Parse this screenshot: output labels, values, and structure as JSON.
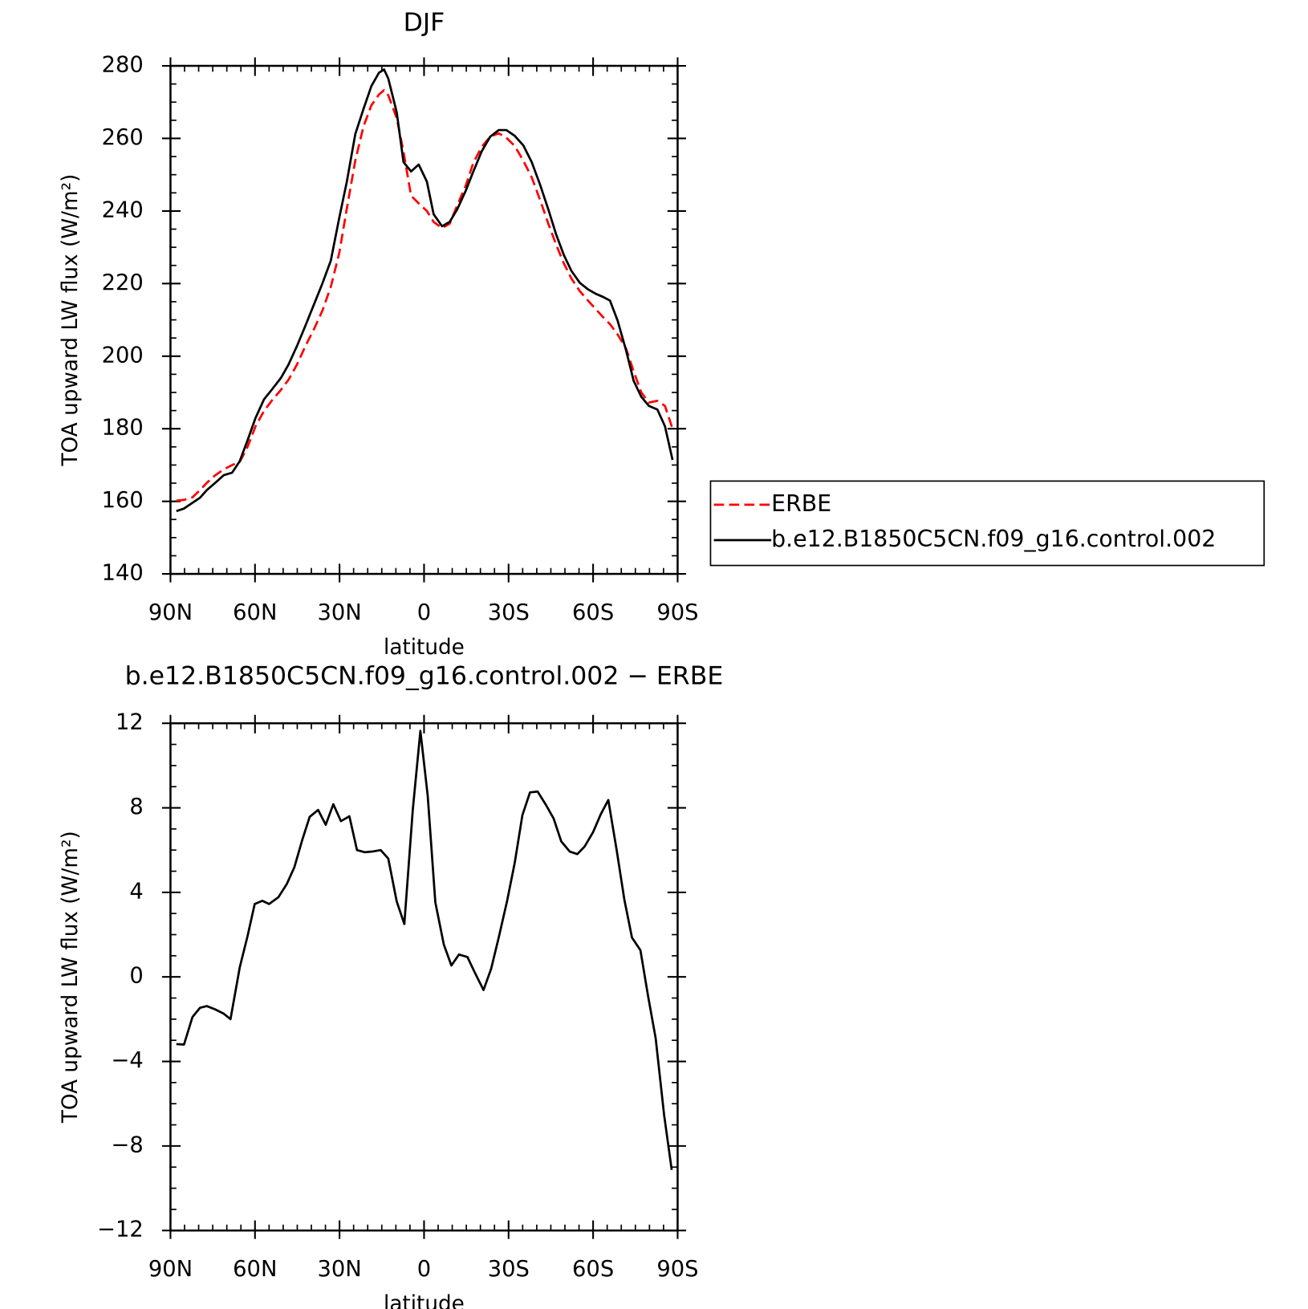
{
  "chart_data": [
    {
      "type": "line",
      "title": "DJF",
      "xlabel": "latitude",
      "ylabel": "TOA upward LW flux (W/m²)",
      "xlim": [
        90,
        -90
      ],
      "xticks": [
        {
          "value": 90,
          "label": "90N"
        },
        {
          "value": 60,
          "label": "60N"
        },
        {
          "value": 30,
          "label": "30N"
        },
        0,
        {
          "value": -30,
          "label": "30S"
        },
        {
          "value": -60,
          "label": "60S"
        },
        {
          "value": -90,
          "label": "90S"
        }
      ],
      "ylim": [
        140,
        280
      ],
      "yticks": [
        140,
        160,
        180,
        200,
        220,
        240,
        260,
        280
      ],
      "legend": "right",
      "x": [
        87.9,
        85.2,
        82.2,
        79.5,
        77.1,
        74.1,
        71.1,
        68.1,
        65.4,
        62.7,
        59.8,
        56.8,
        54.1,
        50.8,
        48.1,
        45.1,
        42.1,
        39.1,
        36.1,
        33.1,
        30.1,
        27.4,
        24.4,
        21.5,
        18.7,
        16.0,
        14.2,
        12.7,
        9.7,
        7.3,
        4.6,
        1.9,
        -1.0,
        -3.4,
        -6.4,
        -9.1,
        -11.8,
        -14.8,
        -17.5,
        -20.5,
        -23.5,
        -26.5,
        -29.2,
        -32.2,
        -35.2,
        -38.2,
        -41.2,
        -44.2,
        -46.9,
        -49.6,
        -52.3,
        -55.3,
        -58.2,
        -60.9,
        -63.6,
        -66.0,
        -68.7,
        -71.7,
        -74.4,
        -77.1,
        -79.8,
        -82.8,
        -85.5,
        -88.2
      ],
      "series": [
        {
          "name": "ERBE",
          "color": "#ff0000",
          "linestyle": "dashed",
          "values": [
            160.2,
            160.4,
            161.1,
            163.1,
            165.1,
            167.2,
            168.8,
            170.0,
            170.9,
            174.9,
            180.7,
            184.9,
            187.7,
            190.7,
            193.5,
            197.7,
            202.8,
            207.4,
            212.5,
            219.1,
            228.4,
            240.7,
            253.9,
            263.3,
            269.1,
            272.1,
            273.3,
            271.9,
            265.6,
            256.3,
            244.2,
            242.1,
            240.0,
            237.0,
            235.3,
            236.5,
            241.6,
            247.0,
            253.3,
            257.7,
            260.5,
            261.4,
            260.2,
            257.9,
            253.9,
            249.3,
            243.0,
            236.3,
            230.7,
            225.6,
            221.4,
            217.9,
            215.3,
            213.0,
            210.7,
            208.8,
            206.0,
            202.1,
            195.8,
            190.0,
            187.2,
            187.7,
            186.3,
            180.0
          ]
        },
        {
          "name": "b.e12.B1850C5CN.f09_g16.control.002",
          "color": "#000000",
          "linestyle": "solid",
          "values": [
            157.3,
            158.0,
            159.6,
            161.0,
            163.1,
            165.1,
            167.2,
            167.9,
            171.1,
            176.7,
            183.0,
            188.1,
            190.7,
            194.0,
            197.7,
            202.8,
            208.4,
            214.2,
            220.0,
            226.3,
            238.1,
            248.1,
            261.2,
            268.1,
            274.4,
            278.1,
            279.0,
            276.5,
            267.2,
            253.5,
            250.9,
            252.8,
            248.1,
            239.1,
            235.8,
            237.0,
            240.5,
            245.6,
            250.9,
            256.5,
            260.5,
            262.3,
            262.3,
            260.7,
            258.1,
            253.5,
            247.2,
            240.2,
            233.5,
            227.9,
            223.5,
            220.2,
            218.4,
            217.2,
            216.3,
            215.3,
            209.8,
            201.6,
            193.2,
            188.8,
            186.3,
            185.3,
            180.7,
            171.4
          ]
        }
      ]
    },
    {
      "type": "line",
      "title": "b.e12.B1850C5CN.f09_g16.control.002 − ERBE",
      "xlabel": "latitude",
      "ylabel": "TOA upward LW flux (W/m²)",
      "xlim": [
        90,
        -90
      ],
      "xticks": [
        {
          "value": 90,
          "label": "90N"
        },
        {
          "value": 60,
          "label": "60N"
        },
        {
          "value": 30,
          "label": "30N"
        },
        0,
        {
          "value": -30,
          "label": "30S"
        },
        {
          "value": -60,
          "label": "60S"
        },
        {
          "value": -90,
          "label": "90S"
        }
      ],
      "ylim": [
        -12,
        12
      ],
      "yticks": [
        {
          "value": -12,
          "label": "−12"
        },
        {
          "value": -8,
          "label": "−8"
        },
        {
          "value": -4,
          "label": "−4"
        },
        0,
        4,
        8,
        12
      ],
      "color": "#000000",
      "x": [
        87.9,
        85.2,
        82.2,
        79.5,
        77.1,
        74.1,
        71.1,
        68.7,
        65.4,
        62.7,
        60.1,
        57.4,
        55.0,
        51.7,
        48.7,
        46.0,
        43.3,
        40.6,
        37.6,
        34.9,
        32.2,
        29.5,
        26.5,
        23.8,
        21.1,
        18.4,
        15.4,
        12.7,
        9.7,
        7.0,
        4.0,
        1.3,
        -1.3,
        -4.0,
        -7.0,
        -9.7,
        -12.4,
        -15.4,
        -18.1,
        -21.1,
        -23.8,
        -26.5,
        -29.5,
        -32.2,
        -34.9,
        -37.6,
        -40.3,
        -43.3,
        -46.0,
        -48.7,
        -51.7,
        -54.4,
        -57.0,
        -60.0,
        -62.7,
        -65.4,
        -68.4,
        -71.1,
        -73.8,
        -76.8,
        -79.5,
        -82.2,
        -85.2,
        -87.9
      ],
      "values": [
        -3.18,
        -3.2,
        -1.9,
        -1.46,
        -1.38,
        -1.54,
        -1.74,
        -2.0,
        0.46,
        1.9,
        3.45,
        3.6,
        3.45,
        3.77,
        4.4,
        5.2,
        6.45,
        7.57,
        7.9,
        7.2,
        8.17,
        7.37,
        7.6,
        6.0,
        5.9,
        5.93,
        6.0,
        5.6,
        3.57,
        2.5,
        7.9,
        11.64,
        8.57,
        3.53,
        1.54,
        0.54,
        1.06,
        0.94,
        0.18,
        -0.62,
        0.38,
        1.86,
        3.61,
        5.41,
        7.65,
        8.73,
        8.77,
        8.13,
        7.49,
        6.41,
        5.93,
        5.81,
        6.17,
        6.85,
        7.69,
        8.37,
        5.97,
        3.65,
        1.86,
        1.26,
        -0.9,
        -2.9,
        -6.53,
        -9.13
      ]
    }
  ]
}
